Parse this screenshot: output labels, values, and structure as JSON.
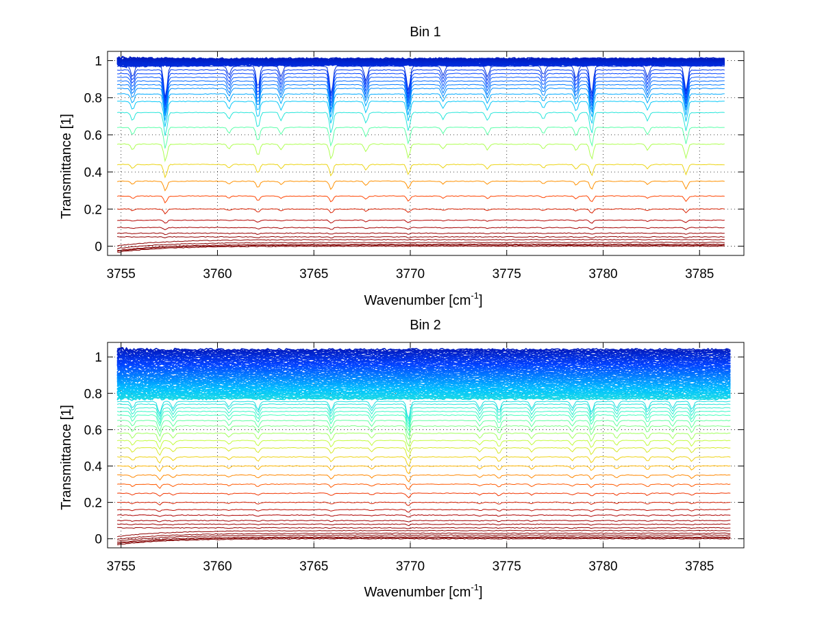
{
  "chart_data": [
    {
      "type": "line",
      "title": "Bin 1",
      "xlabel": "Wavenumber [cm",
      "xlabel_sup": "-1",
      "xlabel_close": "]",
      "ylabel": "Transmittance [1]",
      "xlim": [
        3754.3,
        3787.3
      ],
      "ylim": [
        -0.05,
        1.05
      ],
      "xticks": [
        3755,
        3760,
        3765,
        3770,
        3775,
        3780,
        3785
      ],
      "xtick_labels": [
        "3755",
        "3760",
        "3765",
        "3770",
        "3775",
        "3780",
        "3785"
      ],
      "yticks": [
        0,
        0.2,
        0.4,
        0.6,
        0.8,
        1
      ],
      "ytick_labels": [
        "0",
        "0.2",
        "0.4",
        "0.6",
        "0.8",
        "1"
      ],
      "grid": "dotted",
      "legend": "none",
      "x_data_end": 3786.3,
      "color_scale": [
        "#00008f",
        "#0040ff",
        "#00c0ff",
        "#40ffc0",
        "#c0ff40",
        "#ffc000",
        "#ff4000",
        "#b00000",
        "#800000"
      ],
      "baseline_levels": [
        0,
        0.005,
        0.01,
        0.02,
        0.035,
        0.05,
        0.07,
        0.1,
        0.14,
        0.2,
        0.27,
        0.35,
        0.44,
        0.55,
        0.64,
        0.72,
        0.78,
        0.82,
        0.85,
        0.87,
        0.89,
        0.91,
        0.93,
        0.95,
        0.97
      ],
      "top_cluster": {
        "low": 0.975,
        "high": 1.01,
        "count": 30
      },
      "absorption_lines": [
        {
          "x": 3755.6,
          "depth": 0.06
        },
        {
          "x": 3757.3,
          "depth": 0.18
        },
        {
          "x": 3760.6,
          "depth": 0.05
        },
        {
          "x": 3762.1,
          "depth": 0.12
        },
        {
          "x": 3763.3,
          "depth": 0.06
        },
        {
          "x": 3765.9,
          "depth": 0.16
        },
        {
          "x": 3767.7,
          "depth": 0.08
        },
        {
          "x": 3769.9,
          "depth": 0.14
        },
        {
          "x": 3771.7,
          "depth": 0.05
        },
        {
          "x": 3774.0,
          "depth": 0.06
        },
        {
          "x": 3776.9,
          "depth": 0.05
        },
        {
          "x": 3778.6,
          "depth": 0.07
        },
        {
          "x": 3779.4,
          "depth": 0.16
        },
        {
          "x": 3782.3,
          "depth": 0.06
        },
        {
          "x": 3784.3,
          "depth": 0.14
        }
      ]
    },
    {
      "type": "line",
      "title": "Bin 2",
      "xlabel": "Wavenumber [cm",
      "xlabel_sup": "-1",
      "xlabel_close": "]",
      "ylabel": "Transmittance [1]",
      "xlim": [
        3754.3,
        3787.3
      ],
      "ylim": [
        -0.05,
        1.08
      ],
      "xticks": [
        3755,
        3760,
        3765,
        3770,
        3775,
        3780,
        3785
      ],
      "xtick_labels": [
        "3755",
        "3760",
        "3765",
        "3770",
        "3775",
        "3780",
        "3785"
      ],
      "yticks": [
        0,
        0.2,
        0.4,
        0.6,
        0.8,
        1
      ],
      "ytick_labels": [
        "0",
        "0.2",
        "0.4",
        "0.6",
        "0.8",
        "1"
      ],
      "grid": "dotted",
      "legend": "none",
      "x_data_end": 3786.6,
      "color_scale": [
        "#00008f",
        "#0040ff",
        "#00c0ff",
        "#40ffc0",
        "#c0ff40",
        "#ffc000",
        "#ff4000",
        "#b00000",
        "#800000"
      ],
      "baseline_levels": [
        0,
        0.005,
        0.01,
        0.02,
        0.03,
        0.045,
        0.06,
        0.08,
        0.1,
        0.13,
        0.16,
        0.2,
        0.25,
        0.3,
        0.35,
        0.4,
        0.45,
        0.5,
        0.54,
        0.58,
        0.62,
        0.65,
        0.68,
        0.7,
        0.72,
        0.74,
        0.755
      ],
      "top_cluster": {
        "low": 0.77,
        "high": 1.04,
        "count": 70
      },
      "absorption_lines": [
        {
          "x": 3755.6,
          "depth": 0.05
        },
        {
          "x": 3757.0,
          "depth": 0.09
        },
        {
          "x": 3757.7,
          "depth": 0.05
        },
        {
          "x": 3760.6,
          "depth": 0.04
        },
        {
          "x": 3762.1,
          "depth": 0.06
        },
        {
          "x": 3765.9,
          "depth": 0.07
        },
        {
          "x": 3768.0,
          "depth": 0.05
        },
        {
          "x": 3769.9,
          "depth": 0.13
        },
        {
          "x": 3773.6,
          "depth": 0.05
        },
        {
          "x": 3774.6,
          "depth": 0.07
        },
        {
          "x": 3776.3,
          "depth": 0.05
        },
        {
          "x": 3778.4,
          "depth": 0.05
        },
        {
          "x": 3779.4,
          "depth": 0.08
        },
        {
          "x": 3780.7,
          "depth": 0.05
        },
        {
          "x": 3782.3,
          "depth": 0.06
        },
        {
          "x": 3783.6,
          "depth": 0.05
        },
        {
          "x": 3784.6,
          "depth": 0.06
        }
      ]
    }
  ]
}
